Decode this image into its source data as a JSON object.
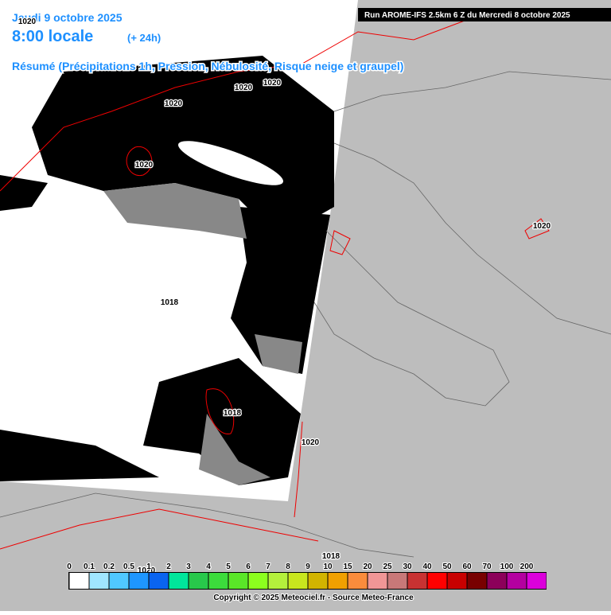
{
  "header": {
    "date": "Jeudi 9 octobre 2025",
    "time": "8:00 locale",
    "lead": "(+ 24h)",
    "summary": "Résumé (Précipitations 1h, Pression, Nébulosité, Risque neige et graupel)",
    "run": "Run AROME-IFS 2.5km 6 Z du Mercredi 8 octobre 2025"
  },
  "isobar_labels": [
    "1020",
    "1020",
    "1020",
    "1020",
    "1020",
    "1018",
    "1018",
    "1020",
    "1020",
    "1018",
    "1020"
  ],
  "legend": {
    "labels": [
      "0",
      "0.1",
      "0.2",
      "0.5",
      "1",
      "2",
      "3",
      "4",
      "5",
      "6",
      "7",
      "8",
      "9",
      "10",
      "15",
      "20",
      "25",
      "30",
      "40",
      "50",
      "60",
      "70",
      "100",
      "200"
    ],
    "colors": [
      "#ffffff",
      "#a0e6ff",
      "#50c8ff",
      "#1e96ff",
      "#0a64f0",
      "#00e69b",
      "#28c84b",
      "#3cdc3c",
      "#5ae628",
      "#8cff1e",
      "#b4f03c",
      "#c8e61e",
      "#d2b400",
      "#f0a000",
      "#fa8c3c",
      "#f09696",
      "#c87878",
      "#c83232",
      "#ff0000",
      "#c80000",
      "#780000",
      "#8c005a",
      "#b400a0",
      "#dc00dc",
      "#ff00ff"
    ]
  },
  "footer": "Copyright © 2025 Meteociel.fr - Source Meteo-France"
}
